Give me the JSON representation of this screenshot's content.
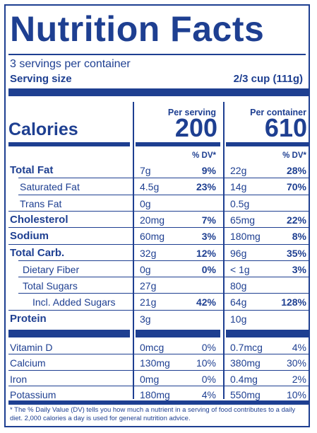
{
  "title": "Nutrition Facts",
  "servings_per_container": "3 servings per container",
  "serving_size_label": "Serving size",
  "serving_size_value": "2/3 cup (111g)",
  "headers": {
    "per_serving": "Per serving",
    "per_container": "Per container"
  },
  "calories": {
    "label": "Calories",
    "per_serving": "200",
    "per_container": "610"
  },
  "dv_header": "% DV*",
  "nutrients": [
    {
      "label": "Total Fat",
      "serving_amount": "7g",
      "serving_dv": "9%",
      "container_amount": "22g",
      "container_dv": "28%"
    },
    {
      "label": "Saturated Fat",
      "serving_amount": "4.5g",
      "serving_dv": "23%",
      "container_amount": "14g",
      "container_dv": "70%"
    },
    {
      "label": "Trans Fat",
      "serving_amount": "0g",
      "serving_dv": "",
      "container_amount": "0.5g",
      "container_dv": ""
    },
    {
      "label": "Cholesterol",
      "serving_amount": "20mg",
      "serving_dv": "7%",
      "container_amount": "65mg",
      "container_dv": "22%"
    },
    {
      "label": "Sodium",
      "serving_amount": "60mg",
      "serving_dv": "3%",
      "container_amount": "180mg",
      "container_dv": "8%"
    },
    {
      "label": "Total Carb.",
      "serving_amount": "32g",
      "serving_dv": "12%",
      "container_amount": "96g",
      "container_dv": "35%"
    },
    {
      "label": "Dietary Fiber",
      "serving_amount": "0g",
      "serving_dv": "0%",
      "container_amount": "< 1g",
      "container_dv": "3%"
    },
    {
      "label": "Total Sugars",
      "serving_amount": "27g",
      "serving_dv": "",
      "container_amount": "80g",
      "container_dv": ""
    },
    {
      "label": "Incl. Added Sugars",
      "serving_amount": "21g",
      "serving_dv": "42%",
      "container_amount": "64g",
      "container_dv": "128%"
    },
    {
      "label": "Protein",
      "serving_amount": "3g",
      "serving_dv": "",
      "container_amount": "10g",
      "container_dv": ""
    }
  ],
  "vitamins": [
    {
      "label": "Vitamin D",
      "serving_amount": "0mcg",
      "serving_dv": "0%",
      "container_amount": "0.7mcg",
      "container_dv": "4%"
    },
    {
      "label": "Calcium",
      "serving_amount": "130mg",
      "serving_dv": "10%",
      "container_amount": "380mg",
      "container_dv": "30%"
    },
    {
      "label": "Iron",
      "serving_amount": "0mg",
      "serving_dv": "0%",
      "container_amount": "0.4mg",
      "container_dv": "2%"
    },
    {
      "label": "Potassium",
      "serving_amount": "180mg",
      "serving_dv": "4%",
      "container_amount": "550mg",
      "container_dv": "10%"
    }
  ],
  "footnote": "* The % Daily Value (DV) tells you how much a nutrient in a serving of food contributes to a daily diet. 2,000 calories a day is used for general nutrition advice.",
  "colors": {
    "ink": "#1e3f91",
    "background": "#ffffff"
  }
}
